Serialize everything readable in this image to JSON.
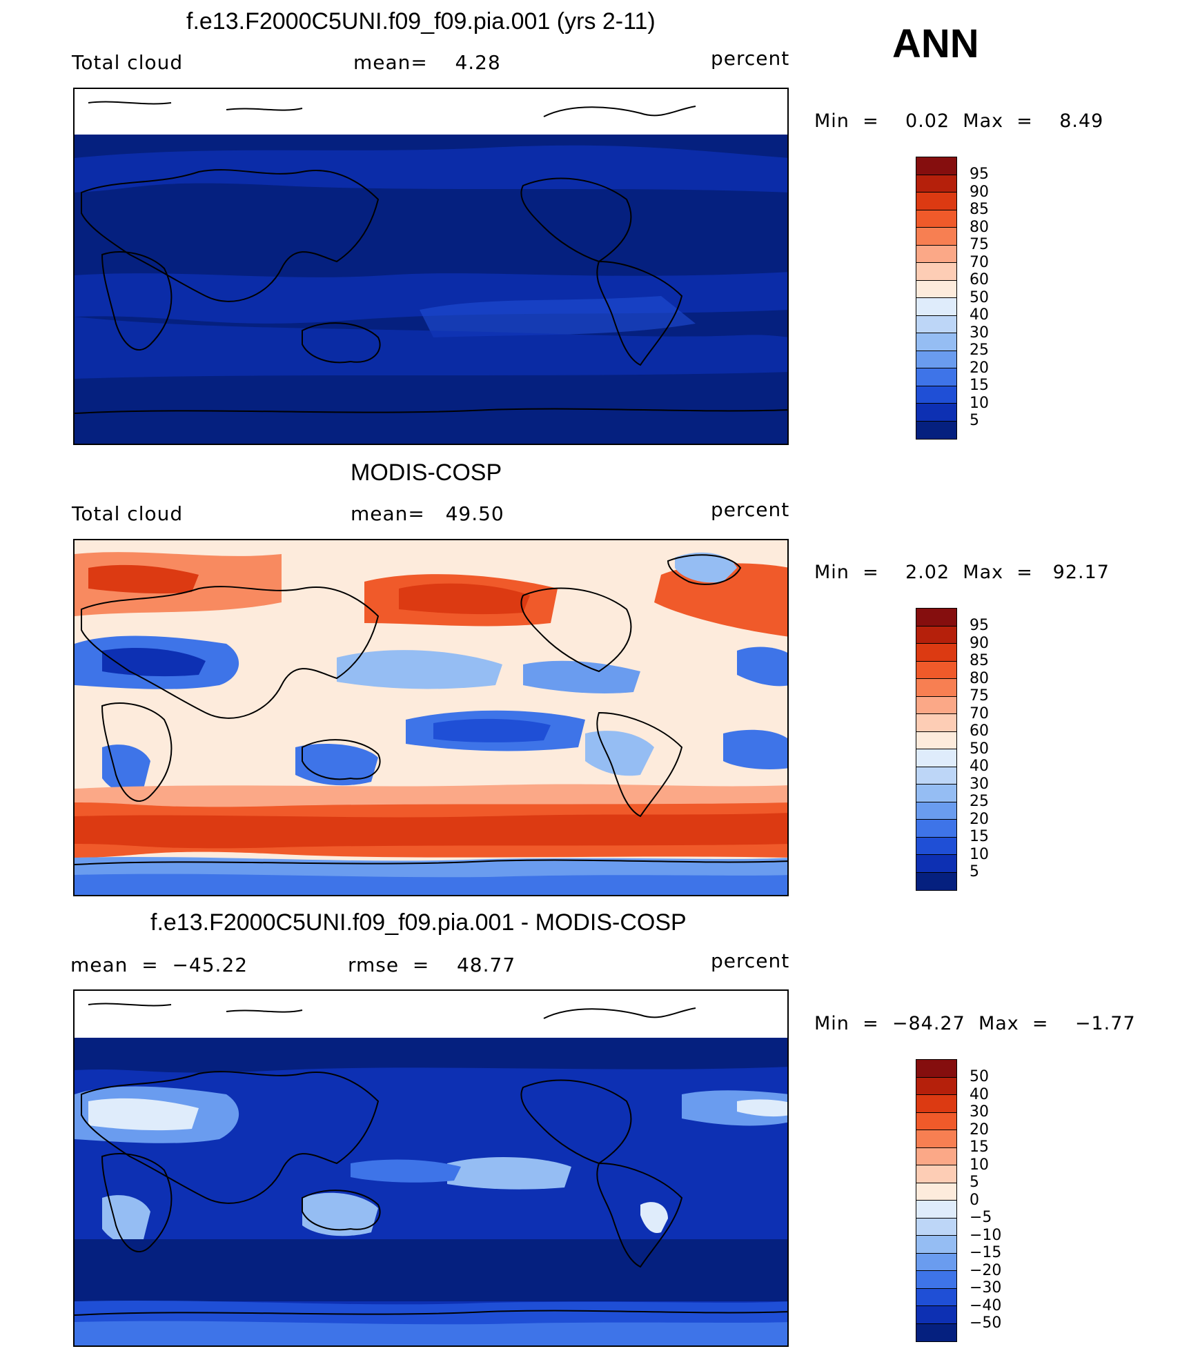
{
  "season": "ANN",
  "panels": [
    {
      "title": "f.e13.F2000C5UNI.f09_f09.pia.001 (yrs 2-11)",
      "variable": "Total cloud",
      "stat1": "mean=    4.28",
      "units": "percent",
      "minmax": "Min  =    0.02  Max  =    8.49",
      "colorbar_labels": [
        "95",
        "90",
        "85",
        "80",
        "75",
        "70",
        "60",
        "50",
        "40",
        "30",
        "25",
        "20",
        "15",
        "10",
        "5"
      ]
    },
    {
      "title": "MODIS-COSP",
      "variable": "Total cloud",
      "stat1": "mean=   49.50",
      "units": "percent",
      "minmax": "Min  =    2.02  Max  =   92.17",
      "colorbar_labels": [
        "95",
        "90",
        "85",
        "80",
        "75",
        "70",
        "60",
        "50",
        "40",
        "30",
        "25",
        "20",
        "15",
        "10",
        "5"
      ]
    },
    {
      "title": "f.e13.F2000C5UNI.f09_f09.pia.001 - MODIS-COSP",
      "variable": "mean  =  −45.22",
      "stat1": "rmse  =    48.77",
      "units": "percent",
      "minmax": "Min  =  −84.27  Max  =    −1.77",
      "colorbar_labels": [
        "50",
        "40",
        "30",
        "20",
        "15",
        "10",
        "5",
        "0",
        "−5",
        "−10",
        "−15",
        "−20",
        "−30",
        "−40",
        "−50"
      ]
    }
  ],
  "colors": {
    "cmap": [
      "#850e0e",
      "#b5200b",
      "#dc3a12",
      "#f05a2a",
      "#f77f52",
      "#fba887",
      "#fdcdb5",
      "#fdebdc",
      "#dfecfb",
      "#bdd6f7",
      "#95bdf3",
      "#6a9cef",
      "#3e74e8",
      "#1f4fd6",
      "#0d30b3",
      "#05207f"
    ],
    "land_outline": "#000000",
    "missing": "#ffffff"
  }
}
